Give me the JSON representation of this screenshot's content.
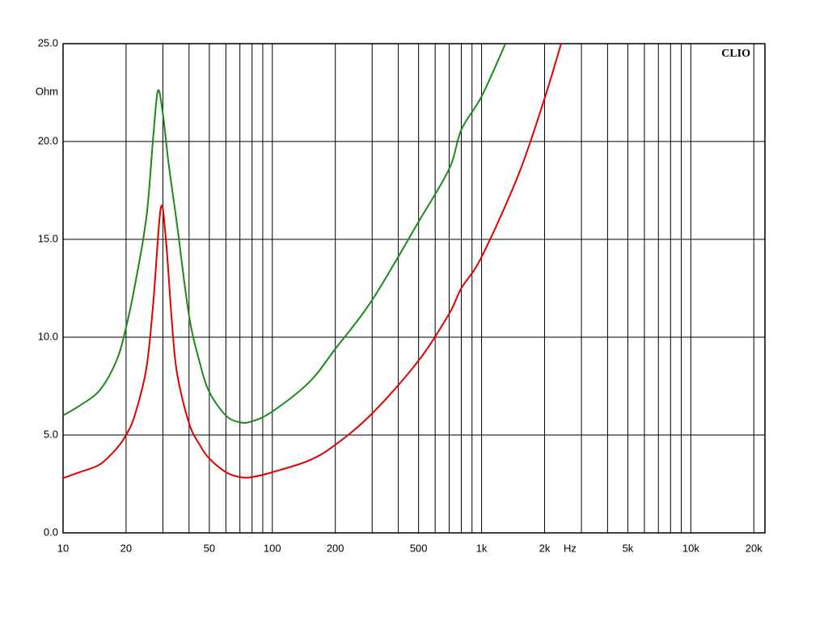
{
  "chart_data": {
    "type": "line",
    "xscale": "log",
    "grid": true,
    "x_label": "Hz",
    "y_label": "Ohm",
    "annotation": "CLIO",
    "xlim": [
      10,
      22600
    ],
    "ylim": [
      0,
      25
    ],
    "xticks": [
      10,
      20,
      50,
      100,
      200,
      500,
      {
        "value": 1000,
        "label": "1k"
      },
      {
        "value": 2000,
        "label": "2k"
      },
      {
        "value": 5000,
        "label": "5k"
      },
      {
        "value": 10000,
        "label": "10k"
      },
      {
        "value": 20000,
        "label": "20k"
      }
    ],
    "xminor_ticks": [
      30,
      40,
      60,
      70,
      80,
      90,
      300,
      400,
      600,
      700,
      800,
      900,
      3000,
      4000,
      6000,
      7000,
      8000,
      9000
    ],
    "yticks": [
      {
        "value": 0,
        "label": "0.0"
      },
      {
        "value": 5,
        "label": "5.0"
      },
      {
        "value": 10,
        "label": "10.0"
      },
      {
        "value": 15,
        "label": "15.0"
      },
      {
        "value": 20,
        "label": "20.0"
      },
      {
        "value": 25,
        "label": "25.0"
      }
    ],
    "series": [
      {
        "color": "#1a8a1a",
        "x": [
          10,
          12,
          15,
          18,
          20,
          22,
          25,
          27,
          28.4,
          30,
          32,
          35,
          40,
          45,
          50,
          60,
          70,
          80,
          100,
          150,
          200,
          300,
          500,
          700,
          800,
          1000,
          1300
        ],
        "values": [
          6.0,
          6.5,
          7.3,
          8.8,
          10.5,
          12.6,
          16.1,
          20.3,
          22.6,
          21.4,
          18.8,
          15.8,
          11.1,
          8.7,
          7.2,
          6.0,
          5.65,
          5.7,
          6.2,
          7.7,
          9.4,
          11.9,
          15.9,
          18.6,
          20.6,
          22.3,
          25.0
        ]
      },
      {
        "color": "#e00000",
        "x": [
          10,
          12,
          15,
          18,
          20,
          22,
          25,
          27,
          29.3,
          31,
          33,
          35,
          40,
          45,
          50,
          60,
          70,
          80,
          100,
          150,
          200,
          300,
          500,
          700,
          800,
          1000,
          1500,
          2000,
          2400
        ],
        "values": [
          2.8,
          3.1,
          3.5,
          4.3,
          5.0,
          6.0,
          8.4,
          11.8,
          16.6,
          15.0,
          11.0,
          8.2,
          5.6,
          4.5,
          3.8,
          3.1,
          2.85,
          2.85,
          3.1,
          3.7,
          4.5,
          6.1,
          8.8,
          11.2,
          12.5,
          14.1,
          18.3,
          22.2,
          25.0
        ]
      }
    ]
  }
}
